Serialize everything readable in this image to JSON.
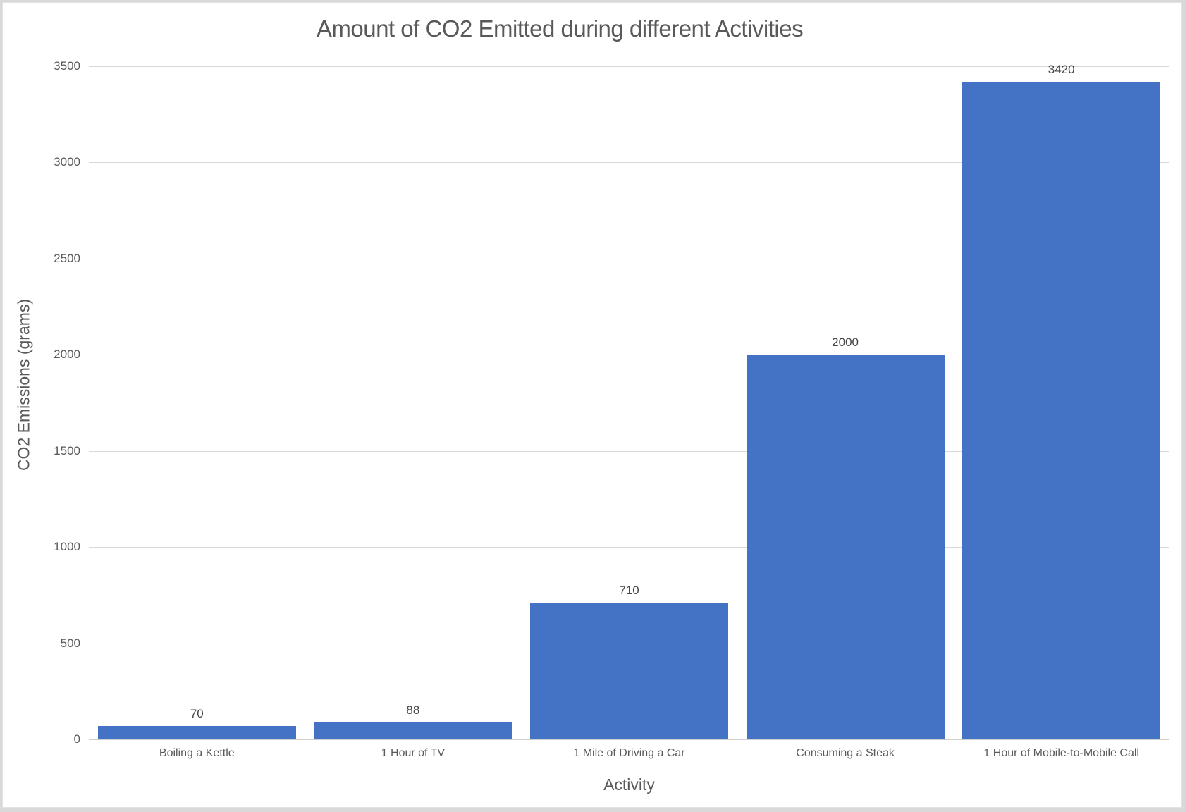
{
  "chart_data": {
    "type": "bar",
    "title": "Amount of CO2 Emitted during different Activities",
    "xlabel": "Activity",
    "ylabel": "CO2 Emissions (grams)",
    "categories": [
      "Boiling a Kettle",
      "1 Hour of TV",
      "1 Mile of Driving a Car",
      "Consuming a Steak",
      "1 Hour of Mobile-to-Mobile Call"
    ],
    "values": [
      70,
      88,
      710,
      2000,
      3420
    ],
    "data_labels": [
      "70",
      "88",
      "710",
      "2000",
      "3420"
    ],
    "yticks": [
      0,
      500,
      1000,
      1500,
      2000,
      2500,
      3000,
      3500
    ],
    "ylim": [
      0,
      3500
    ],
    "grid": "horizontal",
    "legend": "none",
    "bar_color": "#4472C4",
    "gridline_color": "#D9D9D9",
    "axis_line_color": "#CFCFCF",
    "text_color": "#595959",
    "background_color": "#FFFFFF",
    "frame_color": "#D9D9D9"
  }
}
